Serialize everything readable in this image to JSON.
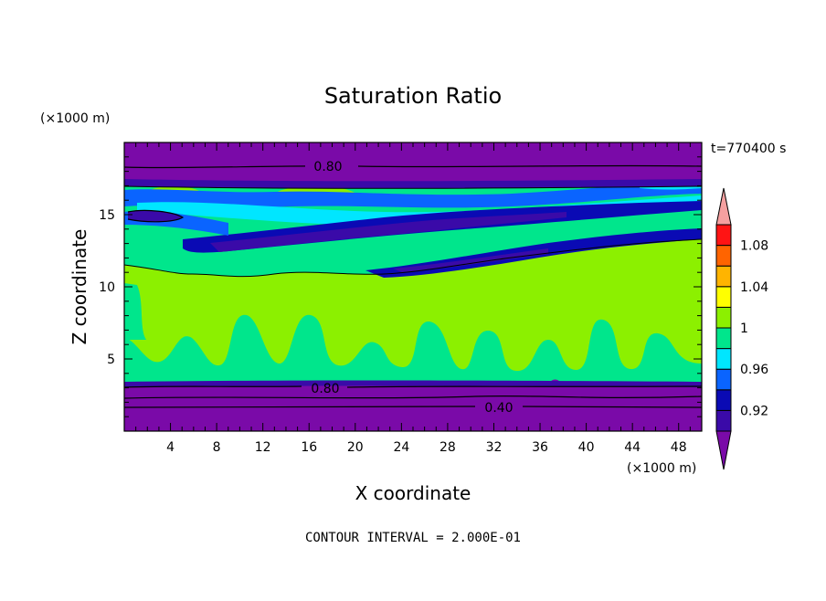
{
  "chart_data": {
    "type": "heatmap",
    "title": "Saturation Ratio",
    "xlabel": "X coordinate",
    "ylabel": "Z coordinate",
    "x_unit": "(×1000 m)",
    "y_unit": "(×1000 m)",
    "time_label": "t=770400 s",
    "footer": "CONTOUR INTERVAL = 2.000E-01",
    "xlim": [
      0,
      50
    ],
    "ylim": [
      0,
      20
    ],
    "x_ticks": [
      "4",
      "8",
      "12",
      "16",
      "20",
      "24",
      "28",
      "32",
      "36",
      "40",
      "44",
      "48"
    ],
    "y_ticks": [
      "5",
      "10",
      "15"
    ],
    "contour_labels": [
      "0.80",
      "0.80",
      "0.40"
    ],
    "colorbar": {
      "labels": [
        "1.08",
        "1.04",
        "1",
        "0.96",
        "0.92"
      ],
      "levels": [
        0.9,
        0.92,
        0.94,
        0.96,
        0.98,
        1.0,
        1.02,
        1.04,
        1.06,
        1.08,
        1.1
      ],
      "colors": [
        "#7a0aa8",
        "#3a0aa8",
        "#0a0ab4",
        "#0a64ff",
        "#00e6ff",
        "#00e68c",
        "#8cf000",
        "#ffff00",
        "#ffb400",
        "#ff6400",
        "#ff1414",
        "#f5a0a0"
      ]
    }
  }
}
